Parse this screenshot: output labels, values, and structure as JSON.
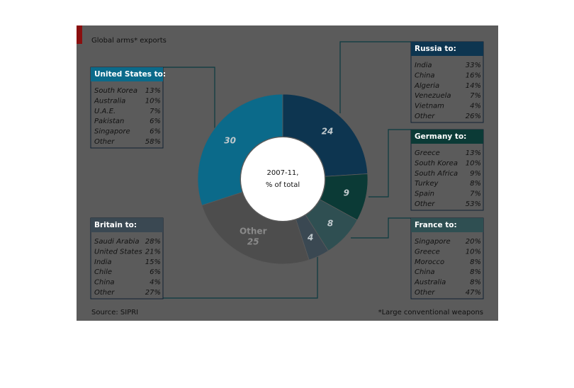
{
  "chart_data": {
    "type": "donut",
    "title": "Global arms* exports",
    "categories": [
      "United States",
      "Russia",
      "Germany",
      "France",
      "Britain",
      "Other"
    ],
    "values": [
      30,
      24,
      9,
      8,
      4,
      25
    ],
    "colors": [
      "#0b6a8a",
      "#0d3550",
      "#0b3a36",
      "#2f4f52",
      "#3a4852",
      "#4d4d4d"
    ],
    "center_label": [
      "2007-11,",
      "% of total"
    ]
  },
  "panels": [
    {
      "title": "United States to:",
      "rows": [
        [
          "South Korea",
          "13%"
        ],
        [
          "Australia",
          "10%"
        ],
        [
          "U.A.E.",
          "7%"
        ],
        [
          "Pakistan",
          "6%"
        ],
        [
          "Singapore",
          "6%"
        ],
        [
          "Other",
          "58%"
        ]
      ]
    },
    {
      "title": "Russia to:",
      "rows": [
        [
          "India",
          "33%"
        ],
        [
          "China",
          "16%"
        ],
        [
          "Algeria",
          "14%"
        ],
        [
          "Venezuela",
          "7%"
        ],
        [
          "Vietnam",
          "4%"
        ],
        [
          "Other",
          "26%"
        ]
      ]
    },
    {
      "title": "Germany to:",
      "rows": [
        [
          "Greece",
          "13%"
        ],
        [
          "South Korea",
          "10%"
        ],
        [
          "South Africa",
          "9%"
        ],
        [
          "Turkey",
          "8%"
        ],
        [
          "Spain",
          "7%"
        ],
        [
          "Other",
          "53%"
        ]
      ]
    },
    {
      "title": "France to:",
      "rows": [
        [
          "Singapore",
          "20%"
        ],
        [
          "Greece",
          "10%"
        ],
        [
          "Morocco",
          "8%"
        ],
        [
          "China",
          "8%"
        ],
        [
          "Australia",
          "8%"
        ],
        [
          "Other",
          "47%"
        ]
      ]
    },
    {
      "title": "Britain to:",
      "rows": [
        [
          "Saudi Arabia",
          "28%"
        ],
        [
          "United States",
          "21%"
        ],
        [
          "India",
          "15%"
        ],
        [
          "Chile",
          "6%"
        ],
        [
          "China",
          "4%"
        ],
        [
          "Other",
          "27%"
        ]
      ]
    }
  ],
  "source": "Source: SIPRI",
  "footnote": "*Large conventional weapons"
}
